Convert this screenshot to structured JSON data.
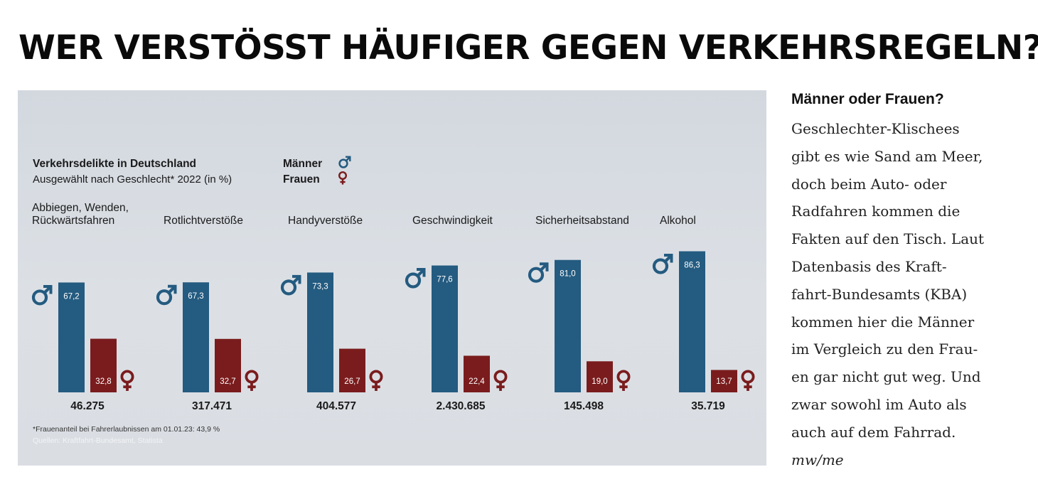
{
  "headline": "WER VERSTÖSST HÄUFIGER GEGEN VERKEHRSREGELN?",
  "sidebar": {
    "heading": "Männer oder Frauen?",
    "body": "Geschlechter-Klischees\ngibt es wie Sand am Meer,\ndoch beim Auto- oder\nRadfahren kommen die\nFakten auf den Tisch. Laut\nDatenbasis des Kraft-\nfahrt-Bundesamts (KBA)\nkommen hier die Männer\nim Vergleich zu den Frau-\nen gar nicht gut weg. Und\nzwar sowohl im Auto als\nauch auf dem Fahrrad.",
    "signature": "mw/me"
  },
  "colors": {
    "men": "#245b80",
    "women": "#7a1c1d",
    "panel": "#d8dce2"
  },
  "chart_data": {
    "type": "bar",
    "title": "Verkehrsdelikte in Deutschland",
    "subtitle": "Ausgewählt nach Geschlecht* 2022 (in %)",
    "legend": [
      {
        "name": "Männer",
        "icon": "male-symbol-icon",
        "color": "#245b80"
      },
      {
        "name": "Frauen",
        "icon": "female-symbol-icon",
        "color": "#7a1c1d"
      }
    ],
    "categories": [
      {
        "label": [
          "Abbiegen, Wenden,",
          "Rückwärtsfahren"
        ],
        "total": "46.275"
      },
      {
        "label": [
          "Rotlichtverstöße"
        ],
        "total": "317.471"
      },
      {
        "label": [
          "Handyverstöße"
        ],
        "total": "404.577"
      },
      {
        "label": [
          "Geschwindigkeit"
        ],
        "total": "2.430.685"
      },
      {
        "label": [
          "Sicherheitsabstand"
        ],
        "total": "145.498"
      },
      {
        "label": [
          "Alkohol"
        ],
        "total": "35.719"
      }
    ],
    "series": [
      {
        "name": "Männer",
        "values": [
          67.2,
          67.3,
          73.3,
          77.6,
          81.0,
          86.3
        ],
        "labels": [
          "67,2",
          "67,3",
          "73,3",
          "77,6",
          "81,0",
          "86,3"
        ]
      },
      {
        "name": "Frauen",
        "values": [
          32.8,
          32.7,
          26.7,
          22.4,
          19.0,
          13.7
        ],
        "labels": [
          "32,8",
          "32,7",
          "26,7",
          "22,4",
          "19,0",
          "13,7"
        ]
      }
    ],
    "ylim": [
      0,
      100
    ],
    "footnote": "*Frauenanteil bei Fahrerlaubnissen am 01.01.23: 43,9 %",
    "source": "Quellen: Kraftfahrt-Bundesamt, Statista"
  }
}
